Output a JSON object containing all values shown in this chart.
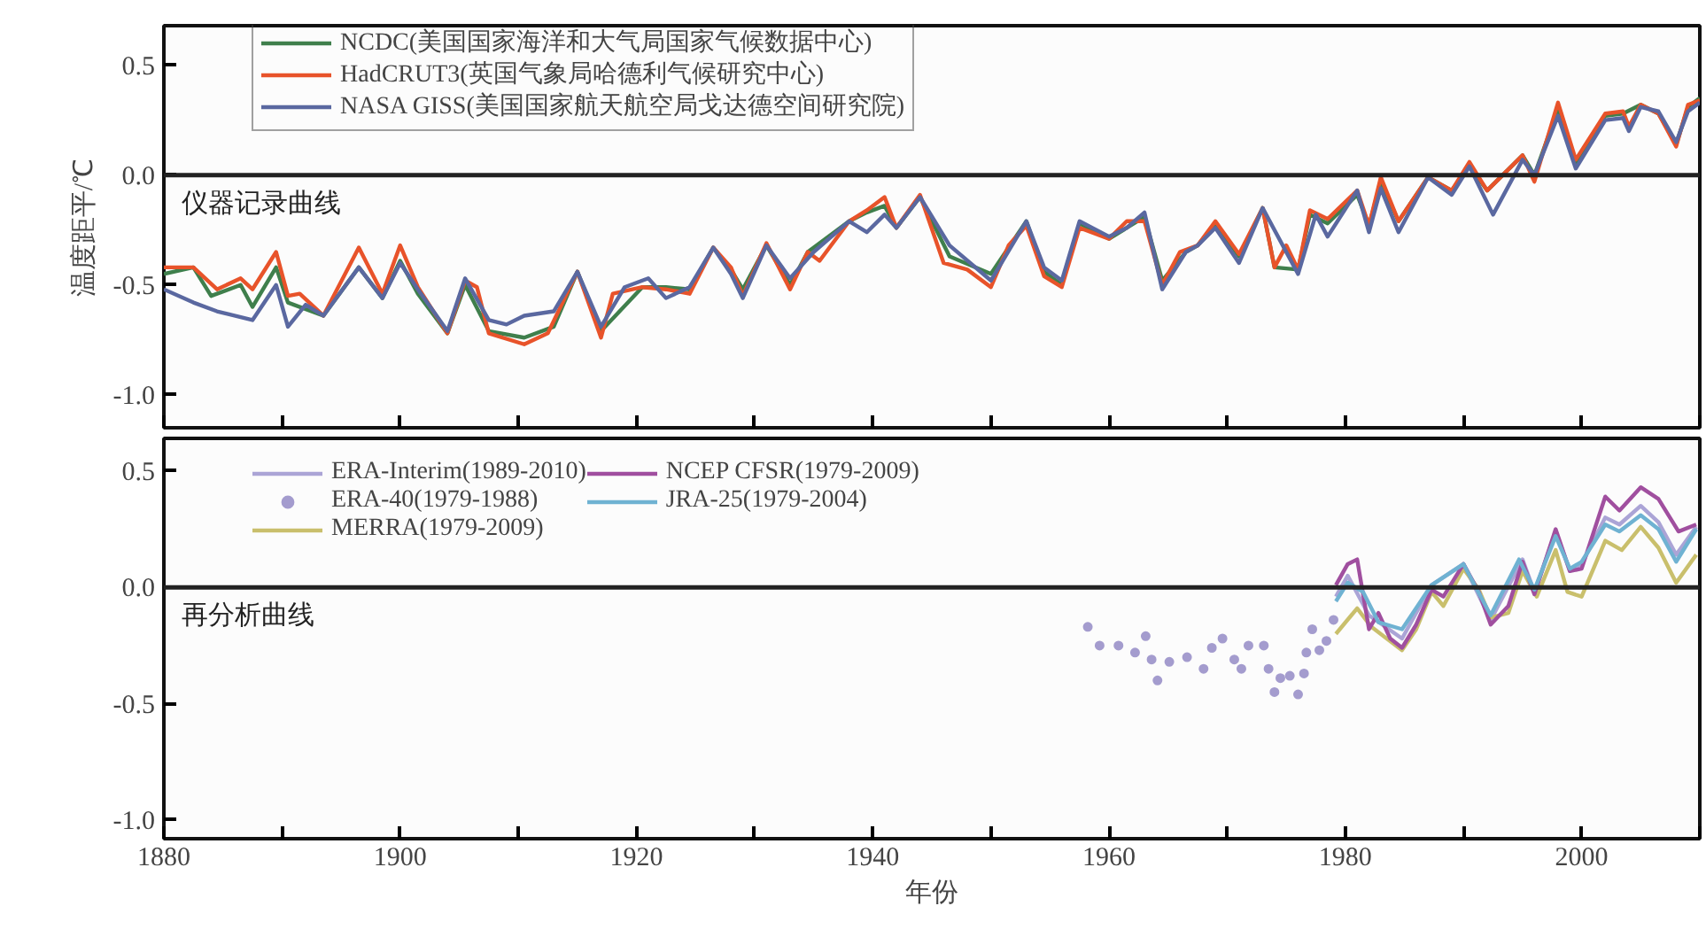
{
  "chart_data": [
    {
      "type": "line",
      "ylabel": "温度距平/℃",
      "tick_labels": "y",
      "legend": "top left",
      "xlim": [
        1880,
        2010
      ],
      "ylim": [
        -1.15,
        0.68
      ],
      "xticks": [
        1880,
        {
          "value": 1890,
          "label": null
        },
        1900,
        {
          "value": 1910,
          "label": null
        },
        1920,
        {
          "value": 1930,
          "label": null
        },
        1940,
        {
          "value": 1950,
          "label": null
        },
        1960,
        {
          "value": 1970,
          "label": null
        },
        1980,
        {
          "value": 1990,
          "label": null
        },
        2000,
        {
          "value": 2010,
          "label": null
        }
      ],
      "yticks": [
        {
          "value": 0.5,
          "label": "0.5"
        },
        {
          "value": 0,
          "label": "0.0"
        },
        {
          "value": -0.5,
          "label": "-0.5"
        },
        {
          "value": -1.0,
          "label": "-1.0"
        }
      ],
      "ref_lines": [
        {
          "axis": "y",
          "value": 0,
          "label": null,
          "color": "#222222"
        }
      ],
      "annotations": [
        "仪器记录曲线"
      ],
      "series": [
        {
          "name": "NCDC(美国国家海洋和大气局国家气候数据中心)",
          "color": "#3f7f4c",
          "x": [
            1880,
            1882.5,
            1884,
            1886.5,
            1887.5,
            1889.5,
            1890.5,
            1893.5,
            1896.5,
            1898.5,
            1900,
            1901.5,
            1904,
            1905.5,
            1907.5,
            1910.5,
            1913,
            1915,
            1917,
            1920.5,
            1922.5,
            1924.5,
            1926.5,
            1928,
            1929,
            1931,
            1933,
            1934.5,
            1938,
            1939.5,
            1941,
            1942,
            1944,
            1946.5,
            1950,
            1953,
            1954.5,
            1956,
            1957.5,
            1960,
            1963,
            1964.5,
            1966.5,
            1967.5,
            1969,
            1971,
            1973,
            1974,
            1976,
            1977,
            1978.5,
            1981,
            1982,
            1983,
            1984.5,
            1987,
            1989,
            1990.5,
            1992,
            1995,
            1996,
            1998,
            1999.5,
            2002,
            2003.5,
            2005,
            2006.5,
            2008,
            2009,
            2010
          ],
          "values": [
            -0.45,
            -0.42,
            -0.55,
            -0.5,
            -0.6,
            -0.42,
            -0.58,
            -0.64,
            -0.42,
            -0.56,
            -0.39,
            -0.54,
            -0.72,
            -0.5,
            -0.71,
            -0.74,
            -0.69,
            -0.44,
            -0.71,
            -0.51,
            -0.51,
            -0.52,
            -0.33,
            -0.43,
            -0.52,
            -0.32,
            -0.5,
            -0.35,
            -0.21,
            -0.17,
            -0.14,
            -0.24,
            -0.1,
            -0.37,
            -0.45,
            -0.21,
            -0.44,
            -0.5,
            -0.22,
            -0.29,
            -0.19,
            -0.48,
            -0.35,
            -0.32,
            -0.22,
            -0.37,
            -0.15,
            -0.42,
            -0.43,
            -0.18,
            -0.22,
            -0.09,
            -0.23,
            -0.03,
            -0.21,
            -0.01,
            -0.07,
            0.04,
            -0.07,
            0.09,
            0.0,
            0.3,
            0.05,
            0.27,
            0.28,
            0.32,
            0.28,
            0.14,
            0.31,
            0.35
          ]
        },
        {
          "name": "HadCRUT3(英国气象局哈德利气候研究中心)",
          "color": "#e8532a",
          "x": [
            1880,
            1882.5,
            1884.5,
            1886.5,
            1887.5,
            1889.5,
            1890.5,
            1891.5,
            1893.5,
            1896.5,
            1898.5,
            1900,
            1901.5,
            1904,
            1905.5,
            1906.5,
            1907.5,
            1910.5,
            1912.5,
            1915,
            1917,
            1918,
            1920.5,
            1922.5,
            1924.5,
            1926.5,
            1928,
            1929,
            1931,
            1933,
            1934.5,
            1935.5,
            1938,
            1939.5,
            1941,
            1942,
            1944,
            1946,
            1948,
            1950,
            1951.5,
            1953,
            1954.5,
            1956,
            1957.5,
            1960,
            1961.5,
            1963,
            1964.5,
            1966,
            1967.5,
            1969,
            1971,
            1973,
            1974,
            1975,
            1976,
            1977,
            1978.5,
            1981,
            1982,
            1983,
            1984.5,
            1987,
            1989,
            1990.5,
            1992,
            1995,
            1996,
            1998,
            1999.5,
            2002,
            2003.5,
            2004,
            2005,
            2006.5,
            2008,
            2009,
            2010
          ],
          "values": [
            -0.42,
            -0.42,
            -0.52,
            -0.47,
            -0.52,
            -0.35,
            -0.55,
            -0.54,
            -0.64,
            -0.33,
            -0.54,
            -0.32,
            -0.51,
            -0.72,
            -0.48,
            -0.51,
            -0.72,
            -0.77,
            -0.72,
            -0.44,
            -0.74,
            -0.54,
            -0.51,
            -0.52,
            -0.54,
            -0.33,
            -0.42,
            -0.55,
            -0.31,
            -0.52,
            -0.35,
            -0.39,
            -0.21,
            -0.16,
            -0.1,
            -0.24,
            -0.09,
            -0.4,
            -0.43,
            -0.51,
            -0.32,
            -0.23,
            -0.46,
            -0.51,
            -0.24,
            -0.29,
            -0.21,
            -0.21,
            -0.5,
            -0.35,
            -0.32,
            -0.21,
            -0.36,
            -0.15,
            -0.42,
            -0.32,
            -0.43,
            -0.16,
            -0.2,
            -0.07,
            -0.23,
            -0.01,
            -0.21,
            -0.01,
            -0.07,
            0.06,
            -0.07,
            0.09,
            -0.03,
            0.33,
            0.07,
            0.28,
            0.29,
            0.22,
            0.32,
            0.28,
            0.13,
            0.32,
            0.34
          ]
        },
        {
          "name": "NASA GISS(美国国家航天航空局戈达德空间研究院)",
          "color": "#5a68a0",
          "x": [
            1880,
            1882.5,
            1884.5,
            1887.5,
            1889.5,
            1890.5,
            1892,
            1893.5,
            1896.5,
            1898.5,
            1900,
            1901.5,
            1904,
            1905.5,
            1907.5,
            1909,
            1910.5,
            1913,
            1915,
            1917,
            1919,
            1921,
            1922.5,
            1924.5,
            1926.5,
            1928,
            1929,
            1931,
            1933,
            1935,
            1938,
            1939.5,
            1941,
            1942,
            1944,
            1946.5,
            1950,
            1953,
            1954.5,
            1956,
            1957.5,
            1960,
            1961.5,
            1963,
            1964.5,
            1966.5,
            1967.5,
            1969,
            1971,
            1973,
            1976,
            1977.5,
            1978.5,
            1981,
            1982,
            1983,
            1984.5,
            1987,
            1989,
            1990.5,
            1992.5,
            1995,
            1996,
            1998,
            1999.5,
            2002,
            2003.5,
            2004,
            2005,
            2006.5,
            2008,
            2009,
            2010
          ],
          "values": [
            -0.52,
            -0.58,
            -0.62,
            -0.66,
            -0.5,
            -0.69,
            -0.59,
            -0.64,
            -0.42,
            -0.56,
            -0.4,
            -0.52,
            -0.71,
            -0.47,
            -0.66,
            -0.68,
            -0.64,
            -0.62,
            -0.44,
            -0.69,
            -0.51,
            -0.47,
            -0.56,
            -0.51,
            -0.33,
            -0.45,
            -0.56,
            -0.32,
            -0.47,
            -0.35,
            -0.21,
            -0.26,
            -0.18,
            -0.24,
            -0.1,
            -0.32,
            -0.48,
            -0.21,
            -0.42,
            -0.48,
            -0.21,
            -0.28,
            -0.24,
            -0.17,
            -0.52,
            -0.35,
            -0.32,
            -0.24,
            -0.4,
            -0.15,
            -0.45,
            -0.18,
            -0.28,
            -0.07,
            -0.26,
            -0.06,
            -0.26,
            -0.01,
            -0.09,
            0.04,
            -0.18,
            0.07,
            0.0,
            0.27,
            0.03,
            0.25,
            0.26,
            0.2,
            0.31,
            0.29,
            0.15,
            0.29,
            0.33
          ]
        }
      ]
    },
    {
      "type": "line",
      "xlabel": "年份",
      "legend": "top left",
      "xlim": [
        1880,
        2010
      ],
      "ylim": [
        -1.08,
        0.64
      ],
      "xticks": [
        1880,
        {
          "value": 1890,
          "label": null
        },
        1900,
        {
          "value": 1910,
          "label": null
        },
        1920,
        {
          "value": 1930,
          "label": null
        },
        1940,
        {
          "value": 1950,
          "label": null
        },
        1960,
        {
          "value": 1970,
          "label": null
        },
        1980,
        {
          "value": 1990,
          "label": null
        },
        2000,
        {
          "value": 2010,
          "label": null
        }
      ],
      "yticks": [
        {
          "value": 0.5,
          "label": "0.5"
        },
        {
          "value": 0,
          "label": "0.0"
        },
        {
          "value": -0.5,
          "label": "-0.5"
        },
        {
          "value": -1.0,
          "label": "-1.0"
        }
      ],
      "ref_lines": [
        {
          "axis": "y",
          "value": 0,
          "label": null,
          "color": "#222222"
        }
      ],
      "annotations": [
        "再分析曲线"
      ],
      "series": [
        {
          "name": "ERA-Interim(1989-2010)",
          "color": "#aba4d6",
          "x": [
            1979.2,
            1980.2,
            1982,
            1984.8,
            1987.3,
            1990,
            1992.3,
            1995,
            1996,
            1997.8,
            1999,
            2000,
            2002,
            2003.2,
            2005,
            2006.5,
            2008,
            2009.7
          ],
          "values": [
            -0.04,
            0.05,
            -0.12,
            -0.22,
            0.01,
            0.1,
            -0.14,
            0.12,
            -0.02,
            0.24,
            0.07,
            0.1,
            0.3,
            0.27,
            0.35,
            0.28,
            0.14,
            0.26
          ]
        },
        {
          "name": "ERA-40(1979-1988)",
          "type": "scatter",
          "marker": "circle",
          "color": "#a49cce",
          "x": [
            1958.2,
            1959.2,
            1960.8,
            1962.2,
            1963.1,
            1963.6,
            1964.1,
            1965.1,
            1966.6,
            1968.0,
            1968.7,
            1969.6,
            1970.6,
            1971.2,
            1971.8,
            1973.1,
            1973.5,
            1974.0,
            1974.5,
            1975.3,
            1976.0,
            1976.5,
            1976.7,
            1977.2,
            1977.8,
            1978.4,
            1979.0
          ],
          "values": [
            -0.17,
            -0.25,
            -0.25,
            -0.28,
            -0.21,
            -0.31,
            -0.4,
            -0.32,
            -0.3,
            -0.35,
            -0.26,
            -0.22,
            -0.31,
            -0.35,
            -0.25,
            -0.25,
            -0.35,
            -0.45,
            -0.39,
            -0.38,
            -0.46,
            -0.37,
            -0.28,
            -0.18,
            -0.27,
            -0.23,
            -0.14
          ]
        },
        {
          "name": "MERRA(1979-2009)",
          "color": "#c9bf6c",
          "x": [
            1979.2,
            1981,
            1982.2,
            1984.8,
            1986,
            1987.3,
            1988.3,
            1990,
            1991.3,
            1992.3,
            1993.8,
            1995,
            1996.2,
            1997.8,
            1998.8,
            2000,
            2002,
            2003.4,
            2005,
            2006.5,
            2008,
            2009.7
          ],
          "values": [
            -0.2,
            -0.09,
            -0.17,
            -0.27,
            -0.18,
            -0.02,
            -0.08,
            0.08,
            -0.01,
            -0.13,
            -0.11,
            0.07,
            -0.04,
            0.16,
            -0.02,
            -0.04,
            0.2,
            0.16,
            0.26,
            0.17,
            0.02,
            0.14
          ]
        },
        {
          "name": "NCEP CFSR(1979-2009)",
          "color": "#a04f9f",
          "x": [
            1979.2,
            1980.2,
            1981,
            1982,
            1982.8,
            1983.8,
            1984.8,
            1986,
            1987.3,
            1988.3,
            1990,
            1991.3,
            1992.3,
            1993.8,
            1995,
            1996,
            1997.8,
            1999,
            2000,
            2002,
            2003.2,
            2005,
            2006.5,
            2008.2,
            2009.7
          ],
          "values": [
            0.01,
            0.1,
            0.12,
            -0.18,
            -0.11,
            -0.22,
            -0.26,
            -0.16,
            -0.01,
            -0.04,
            0.1,
            -0.02,
            -0.16,
            -0.08,
            0.11,
            -0.03,
            0.25,
            0.07,
            0.08,
            0.39,
            0.33,
            0.43,
            0.38,
            0.24,
            0.27
          ]
        },
        {
          "name": "JRA-25(1979-2004)",
          "color": "#6fb2d2",
          "x": [
            1979.2,
            1980.2,
            1981.5,
            1982.8,
            1984.8,
            1987.3,
            1990,
            1992.3,
            1994.7,
            1996,
            1997.8,
            1999,
            2000,
            2002,
            2003.2,
            2005,
            2006.5,
            2008,
            2009.7
          ],
          "values": [
            -0.06,
            0.02,
            -0.02,
            -0.15,
            -0.18,
            0.01,
            0.1,
            -0.12,
            0.12,
            -0.01,
            0.22,
            0.08,
            0.11,
            0.27,
            0.24,
            0.31,
            0.25,
            0.11,
            0.25
          ]
        }
      ]
    }
  ]
}
